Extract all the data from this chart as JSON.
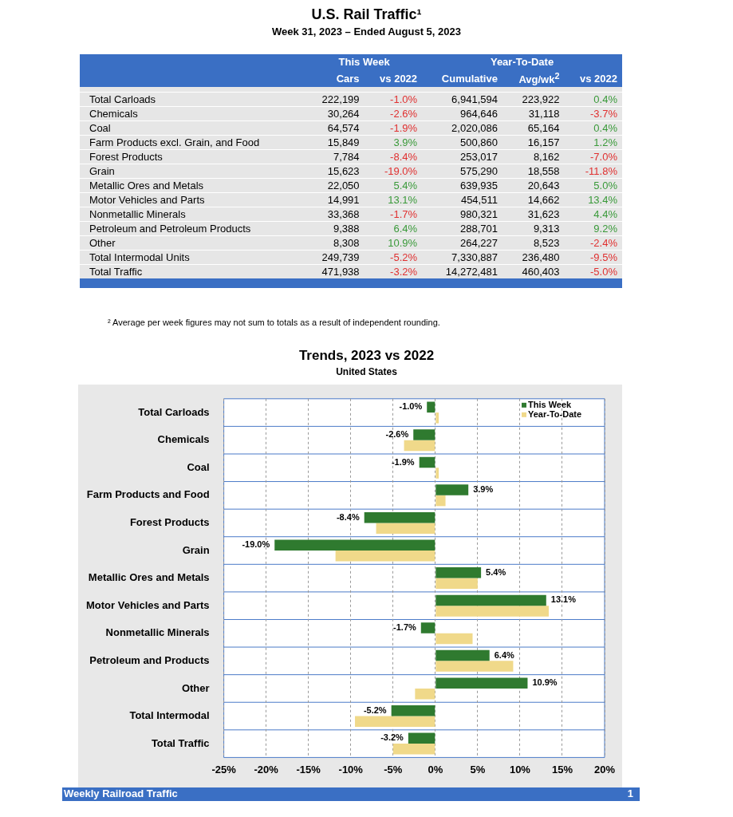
{
  "chart_data": [
    {
      "type": "heatmap",
      "title": "U.S. Rail Traffic¹",
      "subtitle": "Week 31, 2023 – Ended August 5, 2023",
      "categories": [
        "Cars",
        "vs 2022",
        "Cumulative",
        "Avg/wk$^{2}$",
        "vs 2022"
      ],
      "y_categories": [
        "Total Carloads",
        "Chemicals",
        "Coal",
        "Farm Products excl. Grain, and Food",
        "Forest Products",
        "Grain",
        "Metallic Ores and Metals",
        "Motor Vehicles and Parts",
        "Nonmetallic Minerals",
        "Petroleum and Petroleum Products",
        "Other",
        "Total Intermodal Units",
        "Total Traffic"
      ],
      "cells": [
        [
          222199,
          -1.0,
          6941594,
          223922,
          0.4
        ],
        [
          30264,
          -2.6,
          964646,
          31118,
          -3.7
        ],
        [
          64574,
          -1.9,
          2020086,
          65164,
          0.4
        ],
        [
          15849,
          3.9,
          500860,
          16157,
          1.2
        ],
        [
          7784,
          -8.4,
          253017,
          8162,
          -7.0
        ],
        [
          15623,
          -19.0,
          575290,
          18558,
          -11.8
        ],
        [
          22050,
          5.4,
          639935,
          20643,
          5.0
        ],
        [
          14991,
          13.1,
          454511,
          14662,
          13.4
        ],
        [
          33368,
          -1.7,
          980321,
          31623,
          4.4
        ],
        [
          9388,
          6.4,
          288701,
          9313,
          9.2
        ],
        [
          8308,
          10.9,
          264227,
          8523,
          -2.4
        ],
        [
          249739,
          -5.2,
          7330887,
          236480,
          -9.5
        ],
        [
          471938,
          -3.2,
          14272481,
          460403,
          -5.0
        ]
      ],
      "cell_labels": [
        [
          "222,199",
          "-1.0%",
          "6,941,594",
          "223,922",
          "0.4%"
        ],
        [
          "30,264",
          "-2.6%",
          "964,646",
          "31,118",
          "-3.7%"
        ],
        [
          "64,574",
          "-1.9%",
          "2,020,086",
          "65,164",
          "0.4%"
        ],
        [
          "15,849",
          "3.9%",
          "500,860",
          "16,157",
          "1.2%"
        ],
        [
          "7,784",
          "-8.4%",
          "253,017",
          "8,162",
          "-7.0%"
        ],
        [
          "15,623",
          "-19.0%",
          "575,290",
          "18,558",
          "-11.8%"
        ],
        [
          "22,050",
          "5.4%",
          "639,935",
          "20,643",
          "5.0%"
        ],
        [
          "14,991",
          "13.1%",
          "454,511",
          "14,662",
          "13.4%"
        ],
        [
          "33,368",
          "-1.7%",
          "980,321",
          "31,623",
          "4.4%"
        ],
        [
          "9,388",
          "6.4%",
          "288,701",
          "9,313",
          "9.2%"
        ],
        [
          "8,308",
          "10.9%",
          "264,227",
          "8,523",
          "-2.4%"
        ],
        [
          "249,739",
          "-5.2%",
          "7,330,887",
          "236,480",
          "-9.5%"
        ],
        [
          "471,938",
          "-3.2%",
          "14,272,481",
          "460,403",
          "-5.0%"
        ]
      ],
      "annotations": [
        "This Week",
        "Year-To-Date",
        "² Average per week figures may not sum to totals as a result of independent rounding."
      ]
    },
    {
      "type": "bar",
      "orientation": "horizontal",
      "title": "Trends, 2023 vs 2022",
      "subtitle": "United States",
      "categories": [
        "Total Carloads",
        "Chemicals",
        "Coal",
        "Farm Products and Food",
        "Forest Products",
        "Grain",
        "Metallic Ores and Metals",
        "Motor Vehicles and Parts",
        "Nonmetallic Minerals",
        "Petroleum and Products",
        "Other",
        "Total Intermodal",
        "Total Traffic"
      ],
      "series": [
        {
          "name": "This Week",
          "color": "#2f7a2f",
          "values": [
            -1.0,
            -2.6,
            -1.9,
            3.9,
            -8.4,
            -19.0,
            5.4,
            13.1,
            -1.7,
            6.4,
            10.9,
            -5.2,
            -3.2
          ],
          "value_labels": [
            "-1.0%",
            "-2.6%",
            "-1.9%",
            "3.9%",
            "-8.4%",
            "-19.0%",
            "5.4%",
            "13.1%",
            "-1.7%",
            "6.4%",
            "10.9%",
            "-5.2%",
            "-3.2%"
          ]
        },
        {
          "name": "Year-To-Date",
          "color": "#f0d98a",
          "values": [
            0.4,
            -3.7,
            0.4,
            1.2,
            -7.0,
            -11.8,
            5.0,
            13.4,
            4.4,
            9.2,
            -2.4,
            -9.5,
            -5.0
          ]
        }
      ],
      "xlim": [
        -25,
        20
      ],
      "xticks": [
        {
          "value": -25,
          "label": "-25%"
        },
        {
          "value": -20,
          "label": "-20%"
        },
        {
          "value": -15,
          "label": "-15%"
        },
        {
          "value": -10,
          "label": "-10%"
        },
        {
          "value": -5,
          "label": "-5%"
        },
        {
          "value": 0,
          "label": "0%"
        },
        {
          "value": 5,
          "label": "5%"
        },
        {
          "value": 10,
          "label": "10%"
        },
        {
          "value": 15,
          "label": "15%"
        },
        {
          "value": 20,
          "label": "20%"
        }
      ],
      "grid": "x",
      "legend": "top right",
      "annotations": [
        "Weekly Railroad Traffic",
        "1"
      ]
    }
  ]
}
